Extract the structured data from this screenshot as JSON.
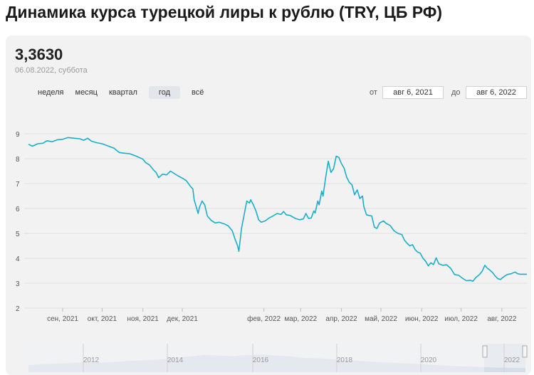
{
  "page": {
    "title": "Динамика курса турецкой лиры к рублю (TRY, ЦБ РФ)"
  },
  "rate": {
    "value": "3,3630",
    "date": "06.08.2022, суббота"
  },
  "periods": [
    {
      "label": "неделя"
    },
    {
      "label": "месяц"
    },
    {
      "label": "квартал"
    },
    {
      "label": "год",
      "active": true
    },
    {
      "label": "всё"
    }
  ],
  "range": {
    "from_label": "от",
    "from_value": "авг 6, 2021",
    "to_label": "до",
    "to_value": "авг 6, 2022"
  },
  "colors": {
    "line": "#1aafc9",
    "navigator_fill": "#d7dde6",
    "grid": "#e0e0e0"
  },
  "chart_data": {
    "type": "line",
    "title": "Динамика курса турецкой лиры к рублю (TRY, ЦБ РФ)",
    "xlabel": "",
    "ylabel": "",
    "ylim": [
      2,
      9
    ],
    "y_ticks": [
      2,
      3,
      4,
      5,
      6,
      7,
      8,
      9
    ],
    "x_ticks": [
      {
        "date": "2021-09-01",
        "label": "сен, 2021"
      },
      {
        "date": "2021-10-01",
        "label": "окт, 2021"
      },
      {
        "date": "2021-11-01",
        "label": "ноя, 2021"
      },
      {
        "date": "2021-12-01",
        "label": "дек, 2021"
      },
      {
        "date": "2022-02-01",
        "label": "фев, 2022"
      },
      {
        "date": "2022-03-01",
        "label": "мар, 2022"
      },
      {
        "date": "2022-04-01",
        "label": "апр, 2022"
      },
      {
        "date": "2022-05-01",
        "label": "май, 2022"
      },
      {
        "date": "2022-06-01",
        "label": "июн, 2022"
      },
      {
        "date": "2022-07-01",
        "label": "июл, 2022"
      },
      {
        "date": "2022-08-01",
        "label": "авг, 2022"
      }
    ],
    "series": [
      {
        "points": [
          [
            "2021-08-06",
            8.58
          ],
          [
            "2021-08-09",
            8.5
          ],
          [
            "2021-08-13",
            8.6
          ],
          [
            "2021-08-17",
            8.62
          ],
          [
            "2021-08-20",
            8.72
          ],
          [
            "2021-08-24",
            8.68
          ],
          [
            "2021-08-28",
            8.76
          ],
          [
            "2021-09-01",
            8.78
          ],
          [
            "2021-09-05",
            8.85
          ],
          [
            "2021-09-10",
            8.82
          ],
          [
            "2021-09-14",
            8.8
          ],
          [
            "2021-09-17",
            8.74
          ],
          [
            "2021-09-20",
            8.82
          ],
          [
            "2021-09-23",
            8.7
          ],
          [
            "2021-09-27",
            8.64
          ],
          [
            "2021-10-01",
            8.6
          ],
          [
            "2021-10-06",
            8.5
          ],
          [
            "2021-10-10",
            8.42
          ],
          [
            "2021-10-14",
            8.25
          ],
          [
            "2021-10-18",
            8.22
          ],
          [
            "2021-10-22",
            8.2
          ],
          [
            "2021-10-27",
            8.1
          ],
          [
            "2021-11-01",
            7.98
          ],
          [
            "2021-11-03",
            7.85
          ],
          [
            "2021-11-06",
            7.75
          ],
          [
            "2021-11-09",
            7.55
          ],
          [
            "2021-11-11",
            7.45
          ],
          [
            "2021-11-13",
            7.24
          ],
          [
            "2021-11-16",
            7.38
          ],
          [
            "2021-11-19",
            7.35
          ],
          [
            "2021-11-22",
            7.5
          ],
          [
            "2021-11-25",
            7.4
          ],
          [
            "2021-11-28",
            7.3
          ],
          [
            "2021-12-01",
            7.22
          ],
          [
            "2021-12-04",
            7.12
          ],
          [
            "2021-12-07",
            6.9
          ],
          [
            "2021-12-09",
            6.78
          ],
          [
            "2021-12-10",
            6.35
          ],
          [
            "2021-12-13",
            5.8
          ],
          [
            "2021-12-14",
            6.05
          ],
          [
            "2021-12-16",
            6.3
          ],
          [
            "2021-12-18",
            6.15
          ],
          [
            "2021-12-20",
            5.7
          ],
          [
            "2021-12-23",
            5.52
          ],
          [
            "2021-12-26",
            5.42
          ],
          [
            "2021-12-29",
            5.45
          ],
          [
            "2022-01-02",
            5.38
          ],
          [
            "2022-01-05",
            5.3
          ],
          [
            "2022-01-08",
            5.1
          ],
          [
            "2022-01-10",
            4.78
          ],
          [
            "2022-01-12",
            4.5
          ],
          [
            "2022-01-13",
            4.28
          ],
          [
            "2022-01-15",
            5.2
          ],
          [
            "2022-01-17",
            5.75
          ],
          [
            "2022-01-19",
            6.3
          ],
          [
            "2022-01-21",
            6.22
          ],
          [
            "2022-01-22",
            6.35
          ],
          [
            "2022-01-24",
            6.15
          ],
          [
            "2022-01-26",
            5.9
          ],
          [
            "2022-01-28",
            5.55
          ],
          [
            "2022-01-30",
            5.45
          ],
          [
            "2022-02-02",
            5.5
          ],
          [
            "2022-02-05",
            5.62
          ],
          [
            "2022-02-08",
            5.7
          ],
          [
            "2022-02-11",
            5.8
          ],
          [
            "2022-02-14",
            5.76
          ],
          [
            "2022-02-16",
            5.88
          ],
          [
            "2022-02-18",
            5.75
          ],
          [
            "2022-02-21",
            5.72
          ],
          [
            "2022-02-25",
            5.6
          ],
          [
            "2022-02-28",
            5.55
          ],
          [
            "2022-03-03",
            5.58
          ],
          [
            "2022-03-05",
            5.8
          ],
          [
            "2022-03-07",
            5.6
          ],
          [
            "2022-03-09",
            5.62
          ],
          [
            "2022-03-11",
            5.9
          ],
          [
            "2022-03-12",
            5.82
          ],
          [
            "2022-03-14",
            6.3
          ],
          [
            "2022-03-15",
            6.15
          ],
          [
            "2022-03-17",
            6.7
          ],
          [
            "2022-03-18",
            6.5
          ],
          [
            "2022-03-20",
            7.25
          ],
          [
            "2022-03-22",
            7.9
          ],
          [
            "2022-03-24",
            7.45
          ],
          [
            "2022-03-26",
            7.6
          ],
          [
            "2022-03-28",
            8.1
          ],
          [
            "2022-03-30",
            8.05
          ],
          [
            "2022-04-01",
            7.8
          ],
          [
            "2022-04-03",
            7.62
          ],
          [
            "2022-04-05",
            7.25
          ],
          [
            "2022-04-07",
            7.05
          ],
          [
            "2022-04-09",
            6.95
          ],
          [
            "2022-04-11",
            6.55
          ],
          [
            "2022-04-13",
            6.75
          ],
          [
            "2022-04-15",
            6.4
          ],
          [
            "2022-04-17",
            6.5
          ],
          [
            "2022-04-18",
            6.08
          ],
          [
            "2022-04-20",
            5.75
          ],
          [
            "2022-04-22",
            5.72
          ],
          [
            "2022-04-24",
            5.7
          ],
          [
            "2022-04-26",
            5.25
          ],
          [
            "2022-04-28",
            5.2
          ],
          [
            "2022-04-30",
            5.42
          ],
          [
            "2022-05-03",
            5.5
          ],
          [
            "2022-05-05",
            5.4
          ],
          [
            "2022-05-08",
            5.32
          ],
          [
            "2022-05-11",
            5.1
          ],
          [
            "2022-05-14",
            5.0
          ],
          [
            "2022-05-17",
            4.95
          ],
          [
            "2022-05-19",
            4.72
          ],
          [
            "2022-05-21",
            4.6
          ],
          [
            "2022-05-23",
            4.5
          ],
          [
            "2022-05-25",
            4.55
          ],
          [
            "2022-05-27",
            4.35
          ],
          [
            "2022-05-29",
            4.25
          ],
          [
            "2022-05-31",
            4.2
          ],
          [
            "2022-06-02",
            4.0
          ],
          [
            "2022-06-04",
            3.88
          ],
          [
            "2022-06-06",
            3.7
          ],
          [
            "2022-06-08",
            3.82
          ],
          [
            "2022-06-10",
            3.75
          ],
          [
            "2022-06-12",
            4.02
          ],
          [
            "2022-06-14",
            3.78
          ],
          [
            "2022-06-17",
            3.72
          ],
          [
            "2022-06-20",
            3.74
          ],
          [
            "2022-06-23",
            3.6
          ],
          [
            "2022-06-26",
            3.35
          ],
          [
            "2022-06-29",
            3.32
          ],
          [
            "2022-07-02",
            3.2
          ],
          [
            "2022-07-05",
            3.1
          ],
          [
            "2022-07-08",
            3.12
          ],
          [
            "2022-07-10",
            3.08
          ],
          [
            "2022-07-12",
            3.22
          ],
          [
            "2022-07-15",
            3.35
          ],
          [
            "2022-07-17",
            3.48
          ],
          [
            "2022-07-19",
            3.72
          ],
          [
            "2022-07-21",
            3.6
          ],
          [
            "2022-07-23",
            3.52
          ],
          [
            "2022-07-25",
            3.42
          ],
          [
            "2022-07-27",
            3.28
          ],
          [
            "2022-07-29",
            3.18
          ],
          [
            "2022-07-31",
            3.15
          ],
          [
            "2022-08-01",
            3.2
          ],
          [
            "2022-08-03",
            3.28
          ],
          [
            "2022-08-05",
            3.35
          ],
          [
            "2022-08-08",
            3.38
          ],
          [
            "2022-08-11",
            3.45
          ],
          [
            "2022-08-13",
            3.38
          ],
          [
            "2022-08-15",
            3.36
          ],
          [
            "2022-08-20",
            3.36
          ]
        ]
      }
    ],
    "navigator": {
      "labels": [
        "2012",
        "2014",
        "2016",
        "2018",
        "2020",
        "2022"
      ]
    },
    "grid": {
      "horizontal": true,
      "vertical": false
    },
    "legend": "none"
  }
}
